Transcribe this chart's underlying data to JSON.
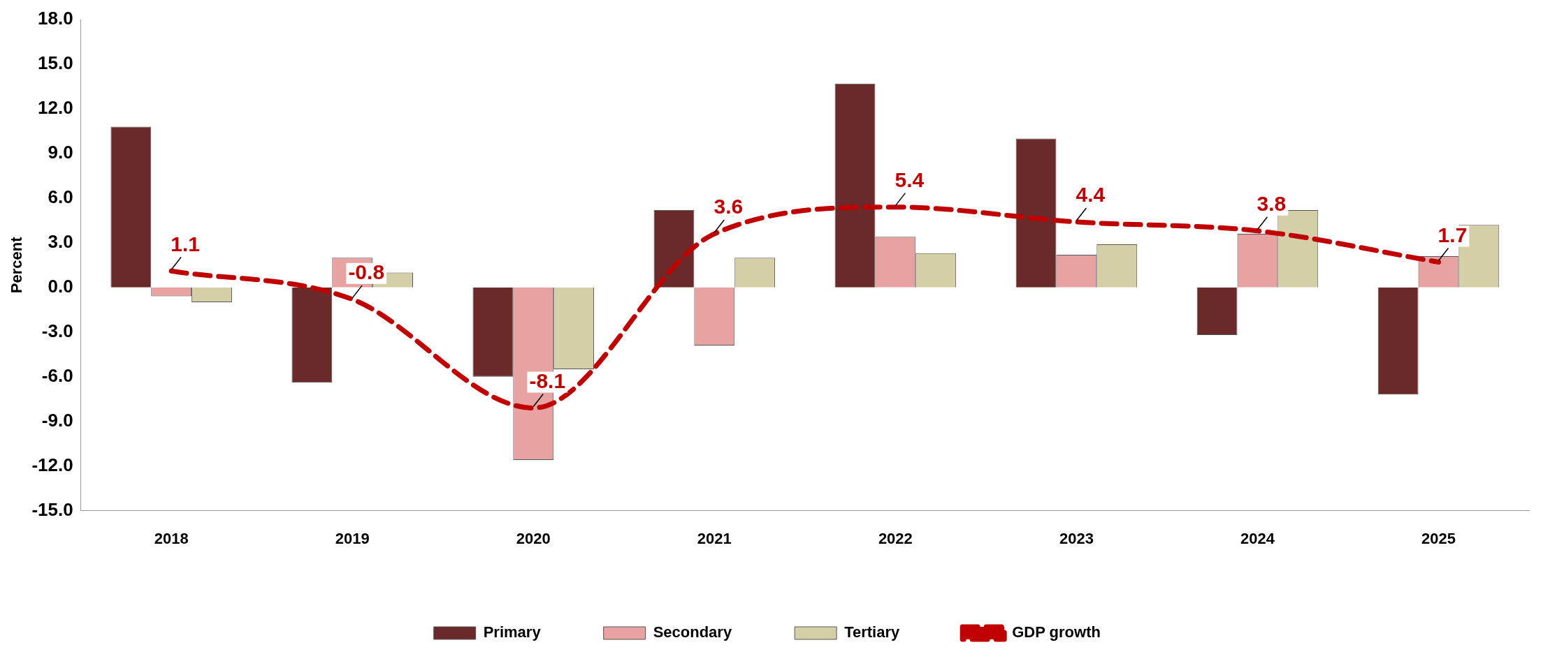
{
  "chart_data": {
    "type": "bar",
    "ylabel": "Percent",
    "categories": [
      "2018",
      "2019",
      "2020",
      "2021",
      "2022",
      "2023",
      "2024",
      "2025"
    ],
    "series": [
      {
        "name": "Primary",
        "color": "#6b2a2a",
        "values": [
          10.8,
          -6.4,
          -6.0,
          5.2,
          13.7,
          10.0,
          -3.2,
          -7.2
        ]
      },
      {
        "name": "Secondary",
        "color": "#e8a2a2",
        "values": [
          -0.6,
          2.0,
          -11.6,
          -3.9,
          3.4,
          2.2,
          3.6,
          2.1
        ]
      },
      {
        "name": "Tertiary",
        "color": "#d4cfa6",
        "values": [
          -1.0,
          1.0,
          -5.5,
          2.0,
          2.3,
          2.9,
          5.2,
          4.2
        ]
      },
      {
        "name": "GDP growth",
        "type": "line",
        "color": "#c00000",
        "line_style": "dashed",
        "marker": "none",
        "values": [
          1.1,
          -0.8,
          -8.1,
          3.6,
          5.4,
          4.4,
          3.8,
          1.7
        ],
        "value_labels": [
          "1.1",
          "-0.8",
          "-8.1",
          "3.6",
          "5.4",
          "4.4",
          "3.8",
          "1.7"
        ]
      }
    ],
    "ylim": [
      -15,
      18
    ],
    "yticks": [
      {
        "value": -15,
        "label": "-15.0"
      },
      {
        "value": -12,
        "label": "-12.0"
      },
      {
        "value": -9,
        "label": "-9.0"
      },
      {
        "value": -6,
        "label": "-6.0"
      },
      {
        "value": -3,
        "label": "-3.0"
      },
      {
        "value": 0,
        "label": "0.0"
      },
      {
        "value": 3,
        "label": "3.0"
      },
      {
        "value": 6,
        "label": "6.0"
      },
      {
        "value": 9,
        "label": "9.0"
      },
      {
        "value": 12,
        "label": "12.0"
      },
      {
        "value": 15,
        "label": "15.0"
      },
      {
        "value": 18,
        "label": "18.0"
      }
    ],
    "grid": false,
    "legend": "bottom"
  }
}
